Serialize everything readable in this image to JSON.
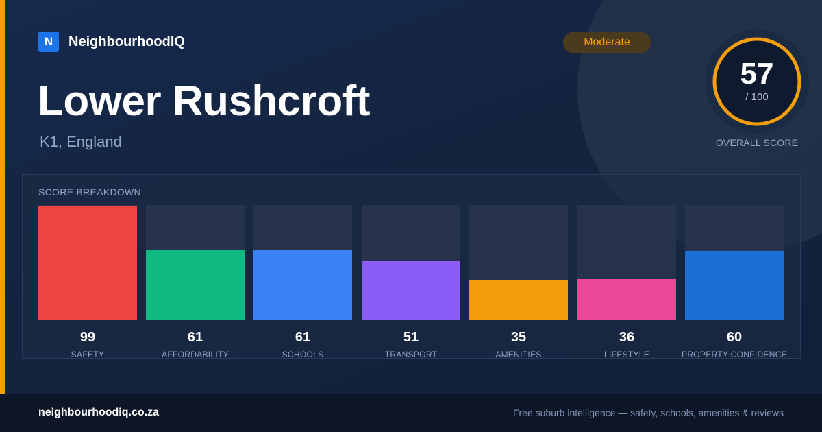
{
  "brand": {
    "logo_letter": "N",
    "name": "NeighbourhoodIQ",
    "logo_color": "#1d74e8"
  },
  "suburb": {
    "name": "Lower Rushcroft",
    "region": "K1, England"
  },
  "rating_badge": {
    "label": "Moderate",
    "color": "#f59e0b"
  },
  "overall": {
    "score": "57",
    "max": "/ 100",
    "label": "OVERALL SCORE",
    "fraction": 0.57,
    "ring_color": "#f59e0b"
  },
  "breakdown": {
    "title": "SCORE BREAKDOWN",
    "categories": [
      {
        "label": "SAFETY",
        "value": "99",
        "fraction": 0.99,
        "color": "#ef4444"
      },
      {
        "label": "AFFORDABILITY",
        "value": "61",
        "fraction": 0.61,
        "color": "#10b981"
      },
      {
        "label": "SCHOOLS",
        "value": "61",
        "fraction": 0.61,
        "color": "#3b82f6"
      },
      {
        "label": "TRANSPORT",
        "value": "51",
        "fraction": 0.51,
        "color": "#8b5cf6"
      },
      {
        "label": "AMENITIES",
        "value": "35",
        "fraction": 0.35,
        "color": "#f59e0b"
      },
      {
        "label": "LIFESTYLE",
        "value": "36",
        "fraction": 0.36,
        "color": "#ec4899"
      },
      {
        "label": "PROPERTY CONFIDENCE",
        "value": "60",
        "fraction": 0.6,
        "color": "#1d6fd8"
      }
    ]
  },
  "footer": {
    "domain": "neighbourhoodiq.co.za",
    "tagline": "Free suburb intelligence — safety, schools, amenities & reviews"
  }
}
